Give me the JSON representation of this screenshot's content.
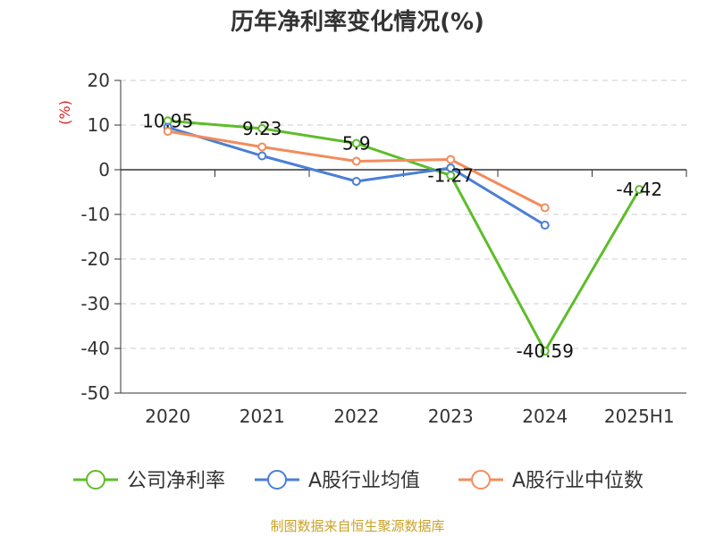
{
  "title": "历年净利率变化情况(%)",
  "source_note": "制图数据来自恒生聚源数据库",
  "chart_data": {
    "type": "line",
    "categories": [
      "2020",
      "2021",
      "2022",
      "2023",
      "2024",
      "2025H1"
    ],
    "ylabel": "(%)",
    "ylim": [
      -50,
      20
    ],
    "yticks": [
      20,
      10,
      0,
      -10,
      -20,
      -30,
      -40,
      -50
    ],
    "grid": "horizontal dashed",
    "legend_position": "bottom",
    "series": [
      {
        "name": "公司净利率",
        "color": "#5dbd2a",
        "values": [
          10.95,
          9.23,
          5.9,
          -1.27,
          -40.59,
          -4.42
        ],
        "labels": [
          "10.95",
          "9.23",
          "5.9",
          "-1.27",
          "-40.59",
          "-4.42"
        ]
      },
      {
        "name": "A股行业均值",
        "color": "#4a7fd6",
        "values": [
          9.5,
          3.1,
          -2.6,
          0.4,
          -12.4,
          null
        ]
      },
      {
        "name": "A股行业中位数",
        "color": "#f28c5c",
        "values": [
          8.6,
          5.1,
          1.9,
          2.3,
          -8.5,
          null
        ]
      }
    ],
    "unit_color": "#e02020"
  }
}
